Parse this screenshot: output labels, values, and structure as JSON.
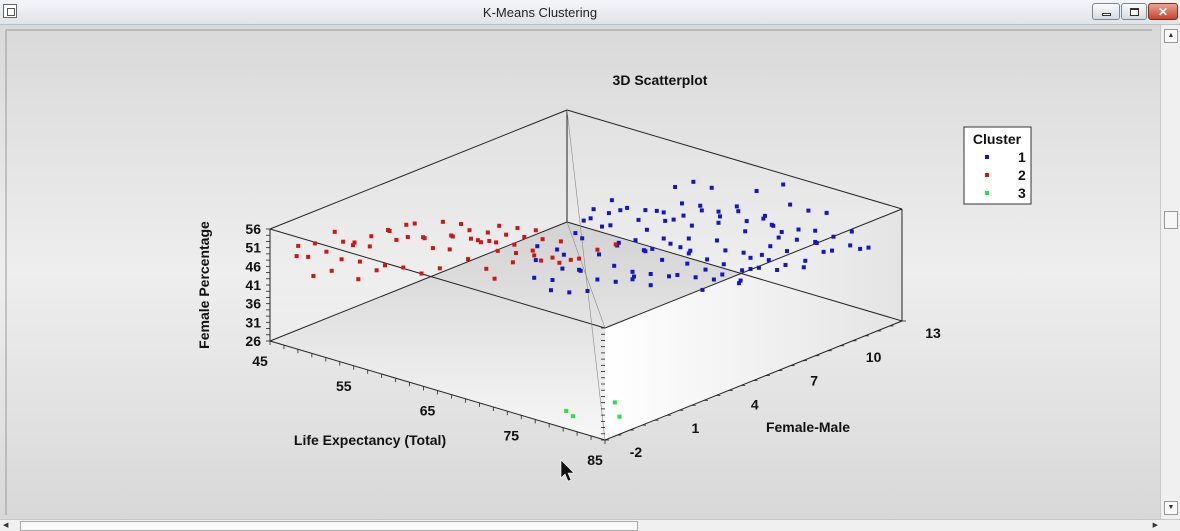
{
  "window": {
    "title": "K-Means Clustering"
  },
  "chart_data": {
    "type": "scatter",
    "subtype": "3d",
    "title": "3D Scatterplot",
    "xlabel": "Life Expectancy (Total)",
    "ylabel": "Female-Male",
    "zlabel": "Female Percentage",
    "x_ticks": [
      45,
      55,
      65,
      75,
      85
    ],
    "y_ticks": [
      -2,
      1,
      4,
      7,
      10,
      13
    ],
    "z_ticks": [
      26,
      31,
      36,
      41,
      46,
      51,
      56
    ],
    "xlim": [
      45,
      85
    ],
    "ylim": [
      -2,
      13
    ],
    "zlim": [
      26,
      56
    ],
    "legend": {
      "title": "Cluster",
      "position": "right"
    },
    "series": [
      {
        "name": "1",
        "color": "#1414c8",
        "points": [
          [
            60,
            7.5,
            48
          ],
          [
            61,
            8,
            46
          ],
          [
            62,
            8.5,
            50
          ],
          [
            63,
            9,
            47
          ],
          [
            64,
            9.5,
            49
          ],
          [
            65,
            8,
            45
          ],
          [
            66,
            9,
            44
          ],
          [
            67,
            10,
            46
          ],
          [
            68,
            9,
            43
          ],
          [
            69,
            10.5,
            47
          ],
          [
            70,
            10,
            44
          ],
          [
            71,
            11,
            45
          ],
          [
            72,
            11.5,
            48
          ],
          [
            73,
            12,
            44
          ],
          [
            74,
            11,
            43
          ],
          [
            75,
            12,
            46
          ],
          [
            76,
            12.5,
            42
          ],
          [
            77,
            12,
            44
          ],
          [
            63,
            7,
            42
          ],
          [
            64,
            7.5,
            44
          ],
          [
            65,
            8.5,
            41
          ],
          [
            66,
            8,
            43
          ],
          [
            67,
            8.5,
            40
          ],
          [
            68,
            9.5,
            41
          ],
          [
            69,
            9,
            42
          ],
          [
            70,
            9.5,
            40
          ],
          [
            71,
            10,
            42
          ],
          [
            72,
            10.5,
            41
          ],
          [
            73,
            11,
            40
          ],
          [
            74,
            10,
            42
          ],
          [
            75,
            10.5,
            41
          ],
          [
            76,
            11,
            43
          ],
          [
            77,
            11.5,
            40
          ],
          [
            78,
            12,
            42
          ],
          [
            70,
            8.5,
            41
          ],
          [
            71,
            9,
            39
          ],
          [
            72,
            9.5,
            40
          ],
          [
            73,
            10,
            38
          ],
          [
            74,
            10,
            39
          ],
          [
            75,
            10,
            40
          ],
          [
            76,
            10.5,
            39
          ],
          [
            77,
            10.5,
            41
          ],
          [
            78,
            11,
            40
          ],
          [
            79,
            12,
            43
          ],
          [
            80,
            12.5,
            44
          ],
          [
            66,
            6.5,
            42
          ],
          [
            67,
            7,
            40
          ],
          [
            68,
            7.5,
            39
          ],
          [
            69,
            8,
            38
          ],
          [
            70,
            8,
            39
          ],
          [
            71,
            8.5,
            38
          ],
          [
            72,
            9,
            37
          ],
          [
            73,
            9,
            39
          ],
          [
            74,
            9.5,
            37
          ],
          [
            62,
            7,
            51
          ],
          [
            63,
            7.5,
            52
          ],
          [
            64,
            8,
            53
          ],
          [
            65,
            8.5,
            52
          ],
          [
            66,
            9,
            51
          ],
          [
            67,
            9.5,
            53
          ],
          [
            68,
            10,
            52
          ],
          [
            69,
            10.5,
            50
          ],
          [
            70,
            11,
            51
          ],
          [
            65,
            10,
            55
          ],
          [
            66,
            10.5,
            56
          ],
          [
            67,
            11,
            54
          ],
          [
            70,
            12,
            53
          ],
          [
            72,
            12.5,
            55
          ],
          [
            74,
            12,
            52
          ],
          [
            75,
            12.5,
            50
          ],
          [
            76,
            13,
            49
          ],
          [
            73,
            11.5,
            47
          ],
          [
            60,
            6.5,
            41
          ],
          [
            61,
            6,
            39
          ],
          [
            62,
            6.5,
            38
          ],
          [
            63,
            6,
            40
          ],
          [
            64,
            6.5,
            37
          ],
          [
            65,
            7,
            36
          ],
          [
            66,
            7.5,
            37
          ],
          [
            67,
            7,
            38
          ],
          [
            68,
            7.5,
            36
          ],
          [
            58,
            6,
            43
          ],
          [
            59,
            5.5,
            41
          ],
          [
            60,
            5,
            38
          ],
          [
            61,
            5.5,
            37
          ],
          [
            62,
            5,
            36
          ],
          [
            63,
            5.5,
            35
          ],
          [
            64,
            6,
            35
          ],
          [
            58,
            7,
            40
          ],
          [
            59,
            7.5,
            44
          ],
          [
            66,
            10,
            48
          ],
          [
            67,
            10.5,
            49
          ],
          [
            68,
            11,
            47
          ],
          [
            69,
            11.5,
            48
          ],
          [
            70,
            11.5,
            46
          ],
          [
            71,
            12,
            47
          ],
          [
            72,
            12,
            45
          ],
          [
            60,
            8,
            50
          ],
          [
            61,
            8.5,
            52
          ],
          [
            75,
            11,
            46
          ],
          [
            76,
            11.5,
            45
          ],
          [
            77,
            12,
            47
          ],
          [
            78,
            12.5,
            45
          ],
          [
            79,
            13,
            46
          ],
          [
            80,
            13,
            42
          ],
          [
            81,
            13,
            43
          ],
          [
            73,
            8,
            37
          ],
          [
            75,
            9,
            38
          ],
          [
            64,
            9,
            45
          ],
          [
            65,
            9.5,
            47
          ],
          [
            66,
            9.5,
            48
          ],
          [
            67,
            8,
            44
          ],
          [
            68,
            8.5,
            45
          ],
          [
            69,
            9,
            46
          ],
          [
            62,
            8,
            47
          ],
          [
            63,
            8,
            43
          ],
          [
            61,
            7,
            45
          ]
        ]
      },
      {
        "name": "2",
        "color": "#d21414",
        "points": [
          [
            46,
            -1,
            50
          ],
          [
            47,
            -1.5,
            49
          ],
          [
            48,
            -1,
            52
          ],
          [
            48,
            0,
            53
          ],
          [
            49,
            0,
            51
          ],
          [
            50,
            -0.5,
            48
          ],
          [
            51,
            0.5,
            50
          ],
          [
            52,
            1,
            54
          ],
          [
            53,
            1,
            52
          ],
          [
            54,
            2,
            51
          ],
          [
            55,
            2,
            49
          ],
          [
            55,
            1.5,
            53
          ],
          [
            56,
            2.5,
            52
          ],
          [
            57,
            2,
            50
          ],
          [
            58,
            3,
            51
          ],
          [
            59,
            3.5,
            50
          ],
          [
            60,
            4,
            49
          ],
          [
            61,
            4.5,
            47
          ],
          [
            61,
            3.5,
            46
          ],
          [
            62,
            4.5,
            45
          ],
          [
            63,
            5,
            44
          ],
          [
            58,
            2.5,
            47
          ],
          [
            59,
            3,
            44
          ],
          [
            60,
            3,
            42
          ],
          [
            57,
            1.5,
            46
          ],
          [
            56,
            1,
            45
          ],
          [
            55,
            0.5,
            47
          ],
          [
            54,
            0,
            48
          ],
          [
            53,
            0,
            46
          ],
          [
            52,
            -0.5,
            44
          ],
          [
            51,
            0,
            47
          ],
          [
            50,
            -1,
            46
          ],
          [
            49,
            -1.5,
            45
          ],
          [
            53,
            1.5,
            55
          ],
          [
            54,
            1.5,
            56
          ],
          [
            55,
            2.5,
            55
          ],
          [
            56,
            3,
            54
          ],
          [
            57,
            3,
            53
          ],
          [
            58,
            3.5,
            52
          ],
          [
            59,
            4,
            51
          ],
          [
            60,
            4.5,
            50
          ],
          [
            61,
            5,
            49
          ],
          [
            62,
            5.5,
            48
          ],
          [
            55,
            3,
            50
          ],
          [
            56,
            3.5,
            49
          ],
          [
            57,
            4,
            48
          ],
          [
            58,
            4,
            46
          ],
          [
            59,
            4.5,
            45
          ],
          [
            60,
            5,
            44
          ],
          [
            61,
            5.5,
            43
          ],
          [
            62,
            6,
            42
          ],
          [
            63,
            6,
            43
          ],
          [
            64,
            6.5,
            45
          ],
          [
            65,
            7,
            46
          ],
          [
            52,
            2,
            50
          ],
          [
            51,
            1.5,
            52
          ],
          [
            50,
            1,
            51
          ],
          [
            49,
            0.5,
            49
          ],
          [
            47,
            0,
            47
          ],
          [
            46,
            -0.5,
            46
          ],
          [
            48,
            1,
            48
          ],
          [
            57,
            4.5,
            51
          ],
          [
            58,
            5,
            50
          ],
          [
            59,
            5.5,
            49
          ],
          [
            56,
            4,
            47
          ]
        ]
      },
      {
        "name": "3",
        "color": "#22e642",
        "points": [
          [
            80,
            -1.5,
            28
          ],
          [
            78,
            -1,
            27
          ],
          [
            85,
            -1.5,
            35
          ],
          [
            82,
            0,
            26
          ]
        ]
      }
    ]
  }
}
